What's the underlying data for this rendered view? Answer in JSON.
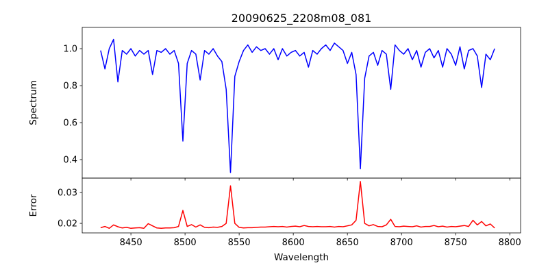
{
  "chart_data": [
    {
      "type": "line",
      "title": "20090625_2208m08_081",
      "xlabel": "",
      "ylabel": "Spectrum",
      "xlim": [
        8405,
        8810
      ],
      "ylim": [
        0.3,
        1.115
      ],
      "yticks": [
        0.4,
        0.6,
        0.8,
        1.0
      ],
      "ytick_labels": [
        "0.4",
        "0.6",
        "0.8",
        "1.0"
      ],
      "grid": false,
      "series": [
        {
          "name": "Spectrum",
          "color": "#0000ff",
          "x_start": 8422,
          "x_step": 4,
          "values": [
            0.99,
            0.89,
            1.0,
            1.05,
            0.82,
            0.99,
            0.97,
            1.0,
            0.96,
            0.99,
            0.97,
            0.99,
            0.86,
            0.99,
            0.98,
            1.0,
            0.97,
            0.99,
            0.92,
            0.5,
            0.92,
            0.99,
            0.97,
            0.83,
            0.99,
            0.97,
            1.0,
            0.96,
            0.93,
            0.78,
            0.33,
            0.85,
            0.93,
            0.99,
            1.02,
            0.98,
            1.01,
            0.99,
            1.0,
            0.97,
            1.0,
            0.94,
            1.0,
            0.96,
            0.98,
            0.99,
            0.96,
            0.98,
            0.9,
            0.99,
            0.97,
            1.0,
            1.02,
            0.99,
            1.03,
            1.01,
            0.99,
            0.92,
            0.98,
            0.86,
            0.35,
            0.84,
            0.96,
            0.98,
            0.91,
            0.99,
            0.97,
            0.78,
            1.02,
            0.99,
            0.97,
            1.0,
            0.94,
            0.99,
            0.9,
            0.98,
            1.0,
            0.95,
            0.99,
            0.9,
            1.0,
            0.97,
            0.91,
            1.01,
            0.89,
            0.99,
            1.0,
            0.96,
            0.79,
            0.97,
            0.94,
            1.0
          ]
        }
      ]
    },
    {
      "type": "line",
      "title": "",
      "xlabel": "Wavelength",
      "ylabel": "Error",
      "xlim": [
        8405,
        8810
      ],
      "ylim": [
        0.0169,
        0.0347
      ],
      "xticks": [
        8450,
        8500,
        8550,
        8600,
        8650,
        8700,
        8750,
        8800
      ],
      "xtick_labels": [
        "8450",
        "8500",
        "8550",
        "8600",
        "8650",
        "8700",
        "8750",
        "8800"
      ],
      "yticks": [
        0.02,
        0.03
      ],
      "ytick_labels": [
        "0.02",
        "0.03"
      ],
      "grid": false,
      "series": [
        {
          "name": "Error",
          "color": "#ff0000",
          "x_start": 8422,
          "x_step": 4,
          "values": [
            0.0186,
            0.019,
            0.0184,
            0.0195,
            0.0189,
            0.0185,
            0.0187,
            0.0184,
            0.0185,
            0.0186,
            0.0184,
            0.0199,
            0.0192,
            0.0185,
            0.0184,
            0.0185,
            0.0185,
            0.0186,
            0.019,
            0.0242,
            0.019,
            0.0196,
            0.0188,
            0.0195,
            0.0187,
            0.0186,
            0.0188,
            0.0187,
            0.019,
            0.02,
            0.0322,
            0.02,
            0.0187,
            0.0185,
            0.0186,
            0.0186,
            0.0187,
            0.0188,
            0.0188,
            0.0189,
            0.019,
            0.0189,
            0.019,
            0.0188,
            0.019,
            0.0191,
            0.0189,
            0.0193,
            0.019,
            0.0189,
            0.019,
            0.0189,
            0.0189,
            0.019,
            0.0188,
            0.019,
            0.0189,
            0.0192,
            0.0195,
            0.021,
            0.0336,
            0.02,
            0.0192,
            0.0196,
            0.019,
            0.0189,
            0.0195,
            0.0213,
            0.019,
            0.0189,
            0.0191,
            0.019,
            0.0189,
            0.0192,
            0.0188,
            0.019,
            0.019,
            0.0193,
            0.0189,
            0.0191,
            0.0188,
            0.019,
            0.0189,
            0.0191,
            0.0193,
            0.019,
            0.021,
            0.0195,
            0.0206,
            0.0192,
            0.0198,
            0.0185
          ]
        }
      ]
    }
  ]
}
